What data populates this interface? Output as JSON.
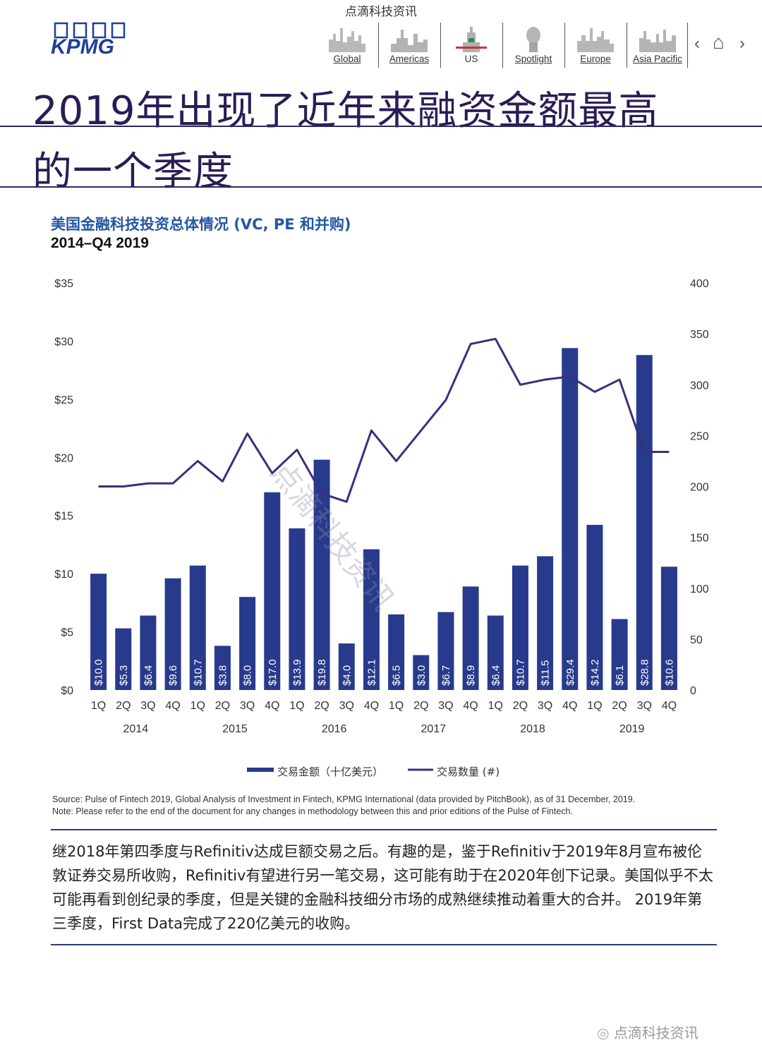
{
  "header": {
    "watermark": "点滴科技资讯",
    "logo": "KPMG",
    "nav": [
      {
        "label": "Global",
        "icon": "global-skyline-icon"
      },
      {
        "label": "Americas",
        "icon": "americas-skyline-icon"
      },
      {
        "label": "US",
        "icon": "us-statue-icon"
      },
      {
        "label": "Spotlight",
        "icon": "spotlight-icon"
      },
      {
        "label": "Europe",
        "icon": "europe-skyline-icon"
      },
      {
        "label": "Asia Pacific",
        "icon": "asia-pacific-skyline-icon"
      }
    ],
    "prev_glyph": "‹",
    "home_glyph": "⌂",
    "next_glyph": "›"
  },
  "title": {
    "line1": "2019年出现了近年来融资金额最高",
    "line2": "的一个季度"
  },
  "chart_heading": {
    "title": "美国金融科技投资总体情况 (VC, PE 和并购)",
    "period": "2014–Q4 2019"
  },
  "chart_data": {
    "type": "bar",
    "categories": [
      "1Q",
      "2Q",
      "3Q",
      "4Q",
      "1Q",
      "2Q",
      "3Q",
      "4Q",
      "1Q",
      "2Q",
      "3Q",
      "4Q",
      "1Q",
      "2Q",
      "3Q",
      "4Q",
      "1Q",
      "2Q",
      "3Q",
      "4Q",
      "1Q",
      "2Q",
      "3Q",
      "4Q"
    ],
    "years": [
      "2014",
      "2015",
      "2016",
      "2017",
      "2018",
      "2019"
    ],
    "series": [
      {
        "name": "交易金额（十亿美元）",
        "type": "bar",
        "axis": "left",
        "color": "#283a8c",
        "values": [
          10.0,
          5.3,
          6.4,
          9.6,
          10.7,
          3.8,
          8.0,
          17.0,
          13.9,
          19.8,
          4.0,
          12.1,
          6.5,
          3.0,
          6.7,
          8.9,
          6.4,
          10.7,
          11.5,
          29.4,
          14.2,
          6.1,
          28.8,
          10.6
        ],
        "labels": [
          "$10.0",
          "$5.3",
          "$6.4",
          "$9.6",
          "$10.7",
          "$3.8",
          "$8.0",
          "$17.0",
          "$13.9",
          "$19.8",
          "$4.0",
          "$12.1",
          "$6.5",
          "$3.0",
          "$6.7",
          "$8.9",
          "$6.4",
          "$10.7",
          "$11.5",
          "$29.4",
          "$14.2",
          "$6.1",
          "$28.8",
          "$10.6"
        ]
      },
      {
        "name": "交易数量 (#)",
        "type": "line",
        "axis": "right",
        "color": "#3b2f7a",
        "values": [
          200,
          200,
          203,
          203,
          225,
          205,
          252,
          213,
          236,
          193,
          185,
          255,
          225,
          255,
          285,
          340,
          345,
          300,
          305,
          308,
          293,
          305,
          234,
          234
        ]
      }
    ],
    "left_axis": {
      "ylim": [
        0,
        35
      ],
      "ticks": [
        "$0",
        "$5",
        "$10",
        "$15",
        "$20",
        "$25",
        "$30",
        "$35"
      ],
      "tick_values": [
        0,
        5,
        10,
        15,
        20,
        25,
        30,
        35
      ]
    },
    "right_axis": {
      "ylim": [
        0,
        400
      ],
      "ticks": [
        "0",
        "50",
        "100",
        "150",
        "200",
        "250",
        "300",
        "350",
        "400"
      ],
      "tick_values": [
        0,
        50,
        100,
        150,
        200,
        250,
        300,
        350,
        400
      ]
    },
    "grid": false,
    "legend_position": "bottom"
  },
  "chart_watermark": "点滴科技资讯",
  "source": "Source: Pulse of Fintech 2019, Global Analysis of Investment in Fintech, KPMG International (data provided by PitchBook), as of 31 December, 2019.",
  "note": "Note: Please refer to the end of the document for any changes in methodology between this and prior editions of the Pulse of Fintech.",
  "paragraph": "继2018年第四季度与Refinitiv达成巨额交易之后。有趣的是，鉴于Refinitiv于2019年8月宣布被伦敦证券交易所收购，Refinitiv有望进行另一笔交易，这可能有助于在2020年创下记录。美国似乎不太可能再看到创纪录的季度，但是关键的金融科技细分市场的成熟继续推动着重大的合并。 2019年第三季度，First Data完成了220亿美元的收购。",
  "footer_watermark": "点滴科技资讯"
}
